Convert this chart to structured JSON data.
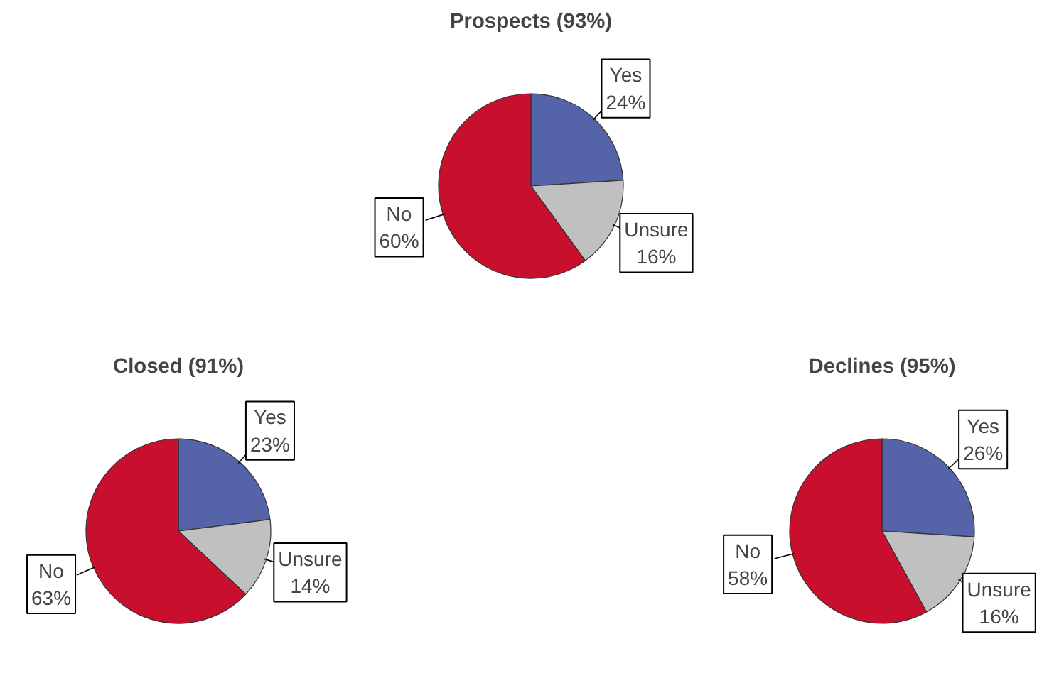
{
  "chart_data": [
    {
      "type": "pie",
      "title": "Prospects (93%)",
      "categories": [
        "Yes",
        "Unsure",
        "No"
      ],
      "values": [
        24,
        16,
        60
      ],
      "value_labels": [
        "24%",
        "16%",
        "60%"
      ],
      "colors": [
        "#5563a8",
        "#c0c0c0",
        "#c8102e"
      ]
    },
    {
      "type": "pie",
      "title": "Closed (91%)",
      "categories": [
        "Yes",
        "Unsure",
        "No"
      ],
      "values": [
        23,
        14,
        63
      ],
      "value_labels": [
        "23%",
        "14%",
        "63%"
      ],
      "colors": [
        "#5563a8",
        "#c0c0c0",
        "#c8102e"
      ]
    },
    {
      "type": "pie",
      "title": "Declines (95%)",
      "categories": [
        "Yes",
        "Unsure",
        "No"
      ],
      "values": [
        26,
        16,
        58
      ],
      "value_labels": [
        "26%",
        "16%",
        "58%"
      ],
      "colors": [
        "#5563a8",
        "#c0c0c0",
        "#c8102e"
      ]
    }
  ]
}
